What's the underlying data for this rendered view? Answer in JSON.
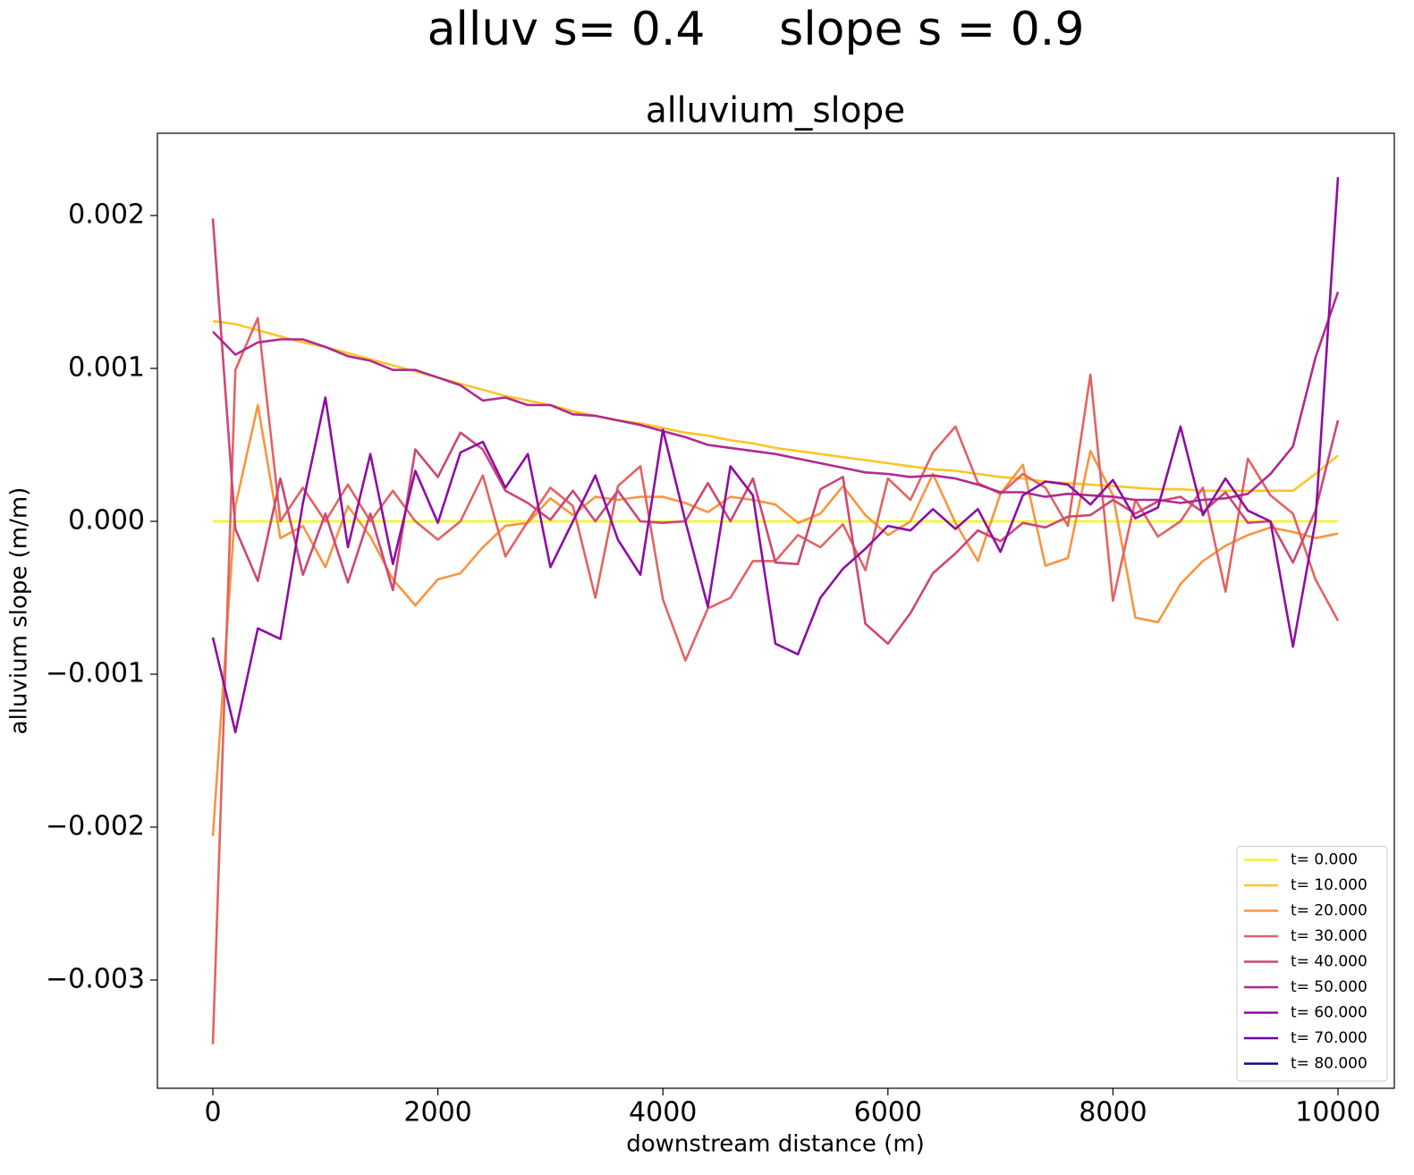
{
  "chart_data": {
    "type": "line",
    "suptitle": "alluv s= 0.4     slope s = 0.9",
    "title": "alluvium_slope",
    "xlabel": "downstream distance (m)",
    "ylabel": "alluvium slope (m/m)",
    "x": [
      0,
      200,
      400,
      600,
      800,
      1000,
      1200,
      1400,
      1600,
      1800,
      2000,
      2200,
      2400,
      2600,
      2800,
      3000,
      3200,
      3400,
      3600,
      3800,
      4000,
      4200,
      4400,
      4600,
      4800,
      5000,
      5200,
      5400,
      5600,
      5800,
      6000,
      6200,
      6400,
      6600,
      6800,
      7000,
      7200,
      7400,
      7600,
      7800,
      8000,
      8200,
      8400,
      8600,
      8800,
      9000,
      9200,
      9400,
      9600,
      9800,
      10000
    ],
    "xlim": [
      -493,
      10501
    ],
    "ylim": [
      -0.003708,
      0.002538
    ],
    "xticks": [
      0,
      2000,
      4000,
      6000,
      8000,
      10000
    ],
    "yticks": [
      {
        "value": -0.003,
        "label": "−0.003"
      },
      {
        "value": -0.002,
        "label": "−0.002"
      },
      {
        "value": -0.001,
        "label": "−0.001"
      },
      {
        "value": 0,
        "label": "0.000"
      },
      0.001,
      0.002
    ],
    "legend": "lower right",
    "series": [
      {
        "name": "t= 0.000",
        "color": "#f0f921",
        "values": [
          0,
          0,
          0,
          0,
          0,
          0,
          0,
          0,
          0,
          0,
          0,
          0,
          0,
          0,
          0,
          0,
          0,
          0,
          0,
          0,
          0,
          0,
          0,
          0,
          0,
          0,
          0,
          0,
          0,
          0,
          0,
          0,
          0,
          0,
          0,
          0,
          0,
          0,
          0,
          0,
          0,
          0,
          0,
          0,
          0,
          0,
          0,
          0,
          0,
          0,
          0
        ]
      },
      {
        "name": "t= 10.000",
        "color": "#fdc527",
        "values": [
          0.00131,
          0.00129,
          0.00125,
          0.00121,
          0.00117,
          0.00114,
          0.0011,
          0.00106,
          0.00102,
          0.00098,
          0.00094,
          0.0009,
          0.00086,
          0.00082,
          0.00079,
          0.00076,
          0.00072,
          0.00069,
          0.00066,
          0.00064,
          0.00061,
          0.00058,
          0.00056,
          0.00053,
          0.00051,
          0.00048,
          0.00046,
          0.00044,
          0.00042,
          0.0004,
          0.00038,
          0.00036,
          0.00034,
          0.00033,
          0.00031,
          0.00029,
          0.00028,
          0.00026,
          0.00025,
          0.00024,
          0.00023,
          0.00022,
          0.00021,
          0.00021,
          0.0002,
          0.0002,
          0.0002,
          0.0002,
          0.0002,
          0.00031,
          0.00043
        ]
      },
      {
        "name": "t= 20.000",
        "color": "#f89540",
        "values": [
          -0.00206,
          0.0001,
          0.00076,
          -0.00011,
          -3e-05,
          -0.0003,
          0.0001,
          -0.0001,
          -0.00038,
          -0.00055,
          -0.00038,
          -0.00034,
          -0.00017,
          -3e-05,
          -1e-05,
          0.00015,
          4e-05,
          0.00016,
          0.00014,
          0.00016,
          0.00016,
          0.00012,
          6e-05,
          0.00016,
          0.00014,
          0.00011,
          -1e-05,
          5e-05,
          0.00023,
          4e-05,
          -9e-05,
          0,
          0.00031,
          -1e-05,
          -0.00026,
          0.00018,
          0.00037,
          -0.00029,
          -0.00024,
          0.00046,
          0.00017,
          -0.00063,
          -0.00066,
          -0.00041,
          -0.00026,
          -0.00016,
          -9e-05,
          -4e-05,
          -7e-05,
          -0.00011,
          -8e-05
        ]
      },
      {
        "name": "t= 30.000",
        "color": "#e16462",
        "values": [
          -0.00342,
          0.00099,
          0.00133,
          0,
          0.00022,
          0,
          0.00024,
          0,
          0.0002,
          0,
          -0.00012,
          0,
          0.0003,
          -0.00023,
          0,
          0.00022,
          0.0001,
          -0.0005,
          0.00023,
          0.00036,
          -0.00051,
          -0.00091,
          -0.00057,
          -0.0005,
          -0.00026,
          -0.00026,
          -9e-05,
          -0.00017,
          -2e-05,
          -0.00032,
          0.00028,
          0.00014,
          0.00045,
          0.00062,
          0.00025,
          0.00018,
          0.00031,
          0.00022,
          -3e-05,
          0.00096,
          -0.00052,
          0.00014,
          -0.0001,
          0,
          0.00022,
          -0.00046,
          0.00041,
          0.00017,
          5e-05,
          -0.00038,
          -0.00065
        ]
      },
      {
        "name": "t= 40.000",
        "color": "#cc4778",
        "values": [
          0.00198,
          -5e-05,
          -0.00039,
          0.00028,
          -0.00035,
          5e-05,
          -0.0004,
          5e-05,
          -0.00045,
          0.00047,
          0.00029,
          0.00058,
          0.00047,
          0.0002,
          0.00012,
          1e-05,
          0.0002,
          0,
          0.0002,
          0,
          -1e-05,
          0,
          0.00025,
          0,
          0.00028,
          -0.00027,
          -0.00028,
          0.00021,
          0.00029,
          -0.00067,
          -0.0008,
          -0.0006,
          -0.00034,
          -0.00021,
          -6e-05,
          -0.00013,
          -1e-05,
          -4e-05,
          3e-05,
          4e-05,
          0.00014,
          5e-05,
          0.00013,
          0.00016,
          6e-05,
          0.00019,
          -1e-05,
          0,
          -0.00027,
          7e-05,
          0.00066
        ]
      },
      {
        "name": "t= 50.000",
        "color": "#b12a90",
        "values": [
          0.00124,
          0.00109,
          0.00117,
          0.00119,
          0.00119,
          0.00114,
          0.00108,
          0.00105,
          0.00099,
          0.00099,
          0.00094,
          0.00089,
          0.00079,
          0.00081,
          0.00076,
          0.00076,
          0.0007,
          0.00069,
          0.00066,
          0.00063,
          0.00059,
          0.00055,
          0.0005,
          0.00048,
          0.00046,
          0.00044,
          0.00041,
          0.00038,
          0.00035,
          0.00032,
          0.00031,
          0.00029,
          0.0003,
          0.00028,
          0.00024,
          0.00019,
          0.00019,
          0.00016,
          0.00018,
          0.00017,
          0.00016,
          0.00014,
          0.00014,
          0.00012,
          0.00014,
          0.00015,
          0.00018,
          0.00031,
          0.00049,
          0.00107,
          0.0015
        ]
      },
      {
        "name": "t= 60.000",
        "color": "#8f0da4",
        "values": [
          -0.00076,
          -0.00138,
          -0.0007,
          -0.00077,
          0.00012,
          0.00081,
          -0.00017,
          0.00044,
          -0.00028,
          0.00033,
          -1e-05,
          0.00045,
          0.00052,
          0.00022,
          0.00044,
          -0.0003,
          0,
          0.0003,
          -0.00012,
          -0.00035,
          0.0006,
          0,
          -0.00056,
          0.00036,
          0.00017,
          -0.0008,
          -0.00087,
          -0.0005,
          -0.00031,
          -0.00018,
          -3e-05,
          -6e-05,
          8e-05,
          -5e-05,
          8e-05,
          -0.0002,
          0.00017,
          0.00026,
          0.00024,
          0.00011,
          0.00027,
          2e-05,
          9e-05,
          0.00062,
          4e-05,
          0.00028,
          7e-05,
          0,
          -0.00082,
          0,
          0.00225
        ]
      },
      {
        "name": "t= 70.000",
        "color": "#6a00a8",
        "values": [
          null,
          null,
          null,
          null,
          null,
          null,
          null,
          null,
          null,
          null,
          null,
          null,
          null,
          null,
          null,
          null,
          null,
          null,
          null,
          null,
          null,
          null,
          null,
          null,
          null,
          null,
          null,
          null,
          null,
          null,
          null,
          null,
          null,
          null,
          null,
          null,
          null,
          null,
          null,
          null,
          null,
          null,
          null,
          null,
          null,
          null,
          null,
          null,
          null,
          null,
          null
        ]
      },
      {
        "name": "t= 80.000",
        "color": "#0d0887",
        "values": [
          null,
          null,
          null,
          null,
          null,
          null,
          null,
          null,
          null,
          null,
          null,
          null,
          null,
          null,
          null,
          null,
          null,
          null,
          null,
          null,
          null,
          null,
          null,
          null,
          null,
          null,
          null,
          null,
          null,
          null,
          null,
          null,
          null,
          null,
          null,
          null,
          null,
          null,
          null,
          null,
          null,
          null,
          null,
          null,
          null,
          null,
          null,
          null,
          null,
          null,
          null
        ]
      }
    ]
  }
}
